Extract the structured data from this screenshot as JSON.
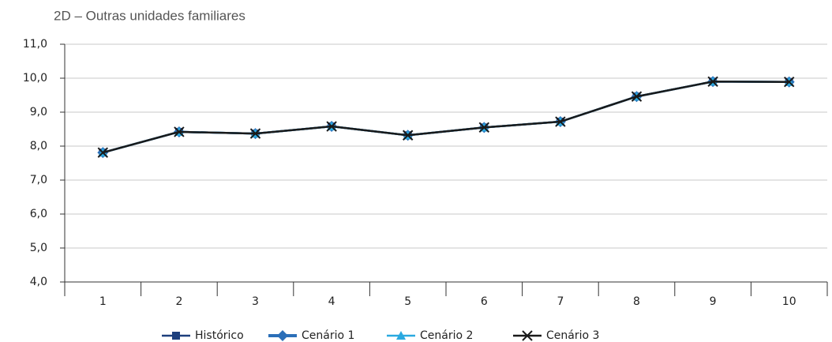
{
  "chart_data": {
    "type": "line",
    "title": "2D – Outras unidades familiares",
    "categories": [
      "1",
      "2",
      "3",
      "4",
      "5",
      "6",
      "7",
      "8",
      "9",
      "10"
    ],
    "series": [
      {
        "name": "Histórico",
        "color": "#1d3f7d",
        "marker": "square",
        "values": [
          7.81,
          8.42,
          8.37,
          8.58,
          8.32,
          8.55,
          8.72,
          9.46,
          9.9,
          9.89
        ]
      },
      {
        "name": "Cenário 1",
        "color": "#2b6fb8",
        "marker": "diamond",
        "values": [
          7.81,
          8.42,
          8.37,
          8.58,
          8.32,
          8.55,
          8.72,
          9.46,
          9.9,
          9.89
        ]
      },
      {
        "name": "Cenário 2",
        "color": "#2aa9e0",
        "marker": "triangle",
        "values": [
          7.81,
          8.42,
          8.37,
          8.58,
          8.32,
          8.55,
          8.72,
          9.46,
          9.9,
          9.89
        ]
      },
      {
        "name": "Cenário 3",
        "color": "#1a1a1a",
        "marker": "x",
        "values": [
          7.81,
          8.42,
          8.37,
          8.58,
          8.32,
          8.55,
          8.72,
          9.46,
          9.9,
          9.89
        ]
      }
    ],
    "ylim": [
      4,
      11
    ],
    "yticks": [
      {
        "value": 4,
        "label": "4,0"
      },
      {
        "value": 5,
        "label": "5,0"
      },
      {
        "value": 6,
        "label": "6,0"
      },
      {
        "value": 7,
        "label": "7,0"
      },
      {
        "value": 8,
        "label": "8,0"
      },
      {
        "value": 9,
        "label": "9,0"
      },
      {
        "value": 10,
        "label": "10,0"
      },
      {
        "value": 11,
        "label": "11,0"
      }
    ],
    "grid": true
  }
}
